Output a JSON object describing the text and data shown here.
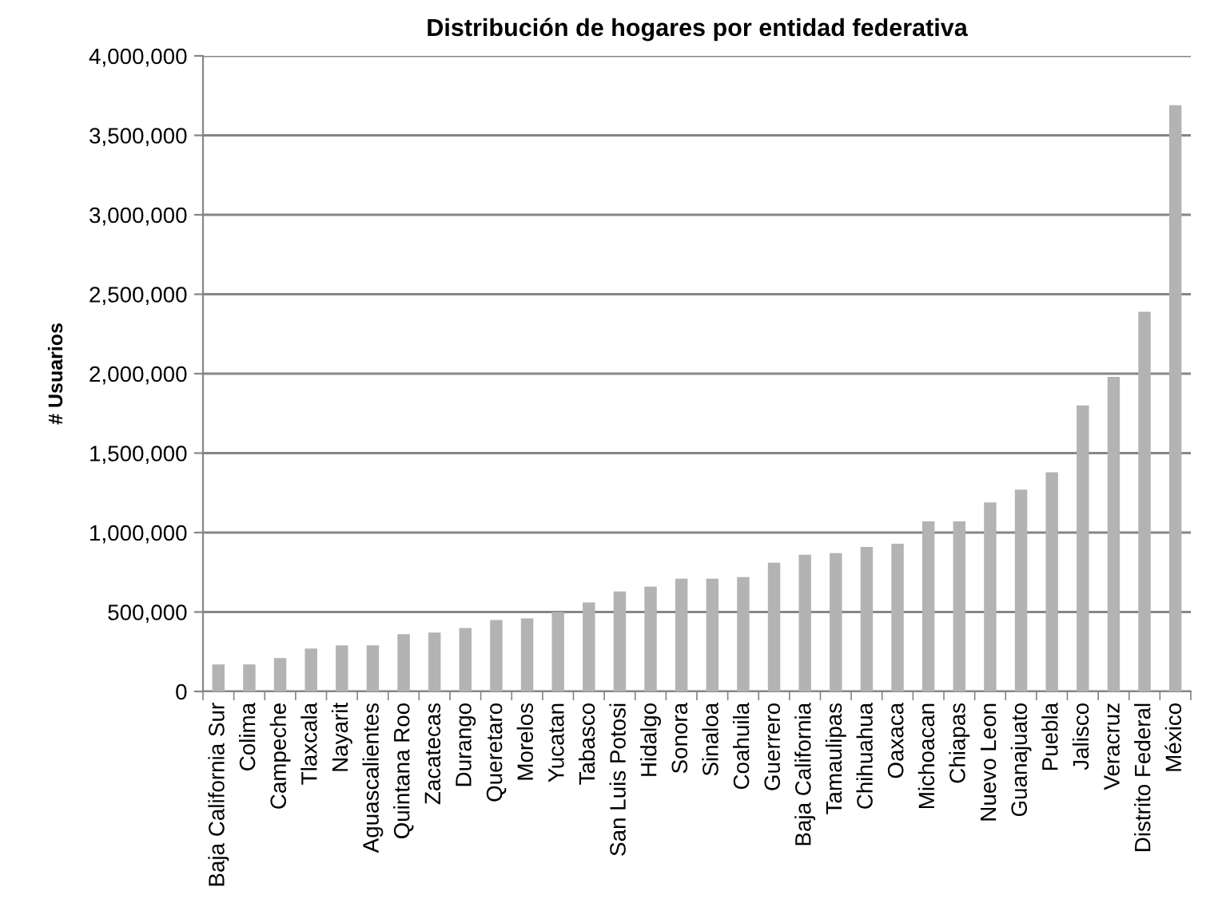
{
  "chart_data": {
    "type": "bar",
    "title": "Distribución de hogares por entidad federativa",
    "ylabel": "# Usuarios",
    "categories": [
      "Baja California Sur",
      "Colima",
      "Campeche",
      "Tlaxcala",
      "Nayarit",
      "Aguascalientes",
      "Quintana Roo",
      "Zacatecas",
      "Durango",
      "Queretaro",
      "Morelos",
      "Yucatan",
      "Tabasco",
      "San Luis Potosi",
      "Hidalgo",
      "Sonora",
      "Sinaloa",
      "Coahuila",
      "Guerrero",
      "Baja California",
      "Tamaulipas",
      "Chihuahua",
      "Oaxaca",
      "Michoacan",
      "Chiapas",
      "Nuevo Leon",
      "Guanajuato",
      "Puebla",
      "Jalisco",
      "Veracruz",
      "Distrito Federal",
      "México"
    ],
    "values": [
      170000,
      170000,
      210000,
      270000,
      290000,
      290000,
      360000,
      370000,
      400000,
      450000,
      460000,
      500000,
      560000,
      630000,
      660000,
      710000,
      710000,
      720000,
      810000,
      860000,
      870000,
      910000,
      930000,
      1070000,
      1070000,
      1190000,
      1270000,
      1380000,
      1800000,
      1980000,
      2390000,
      3690000
    ],
    "color": "#b3b3b3",
    "ylim": [
      0,
      4000000
    ],
    "yticks": [
      0,
      {
        "value": 500000,
        "label": "500,000"
      },
      {
        "value": 1000000,
        "label": "1,000,000"
      },
      {
        "value": 1500000,
        "label": "1,500,000"
      },
      {
        "value": 2000000,
        "label": "2,000,000"
      },
      {
        "value": 2500000,
        "label": "2,500,000"
      },
      {
        "value": 3000000,
        "label": "3,000,000"
      },
      {
        "value": 3500000,
        "label": "3,500,000"
      },
      {
        "value": 4000000,
        "label": "4,000,000"
      }
    ],
    "grid": "y"
  }
}
